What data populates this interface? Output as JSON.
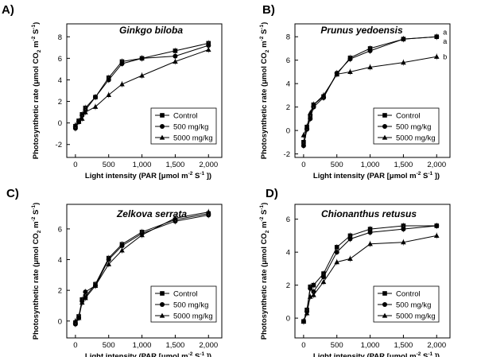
{
  "figure": {
    "legend": [
      "Control",
      "500  mg/kg",
      "5000 mg/kg"
    ],
    "x_axis_label": {
      "prefix": "Light intensity (PAR [μmol m",
      "exp1": "-2",
      "mid": " S",
      "exp2": "-1",
      "suffix": " ])"
    },
    "y_axis_label": {
      "prefix": "Photosynthetic rate (μmol CO",
      "sub": "2",
      "mid1": " m",
      "exp1": "-2",
      "mid2": " S",
      "exp2": "-1",
      "suffix": ")"
    }
  },
  "chart_data": [
    {
      "type": "line",
      "panel_label": "A)",
      "title": "Ginkgo biloba",
      "x": [
        0,
        50,
        100,
        150,
        300,
        500,
        700,
        1000,
        1500,
        2000
      ],
      "x_ticks": [
        0,
        500,
        1000,
        1500,
        2000
      ],
      "x_tick_labels": [
        "0",
        "500",
        "1,000",
        "1,500",
        "2,000"
      ],
      "xlim": [
        -130,
        2200
      ],
      "y_ticks": [
        -2,
        0,
        2,
        4,
        6,
        8
      ],
      "y_tick_labels": [
        "-2",
        "0",
        "2",
        "4",
        "6",
        "8"
      ],
      "ylim": [
        -3.2,
        9.2
      ],
      "series": [
        {
          "name": "Control",
          "marker": "square",
          "values": [
            -0.3,
            0.2,
            0.8,
            1.4,
            2.4,
            4.2,
            5.7,
            6.0,
            6.7,
            7.4
          ]
        },
        {
          "name": "500  mg/kg",
          "marker": "circle",
          "values": [
            -0.5,
            0.1,
            0.7,
            1.2,
            2.4,
            4.0,
            5.5,
            6.0,
            6.2,
            7.2
          ]
        },
        {
          "name": "5000 mg/kg",
          "marker": "triangle",
          "values": [
            -0.2,
            0.1,
            0.4,
            1.0,
            1.5,
            2.6,
            3.6,
            4.4,
            5.7,
            6.8
          ]
        }
      ],
      "significance": []
    },
    {
      "type": "line",
      "panel_label": "B)",
      "title": "Prunus yedoensis",
      "x": [
        0,
        50,
        100,
        150,
        300,
        500,
        700,
        1000,
        1500,
        2000
      ],
      "x_ticks": [
        0,
        500,
        1000,
        1500,
        2000
      ],
      "x_tick_labels": [
        "0",
        "500",
        "1,000",
        "1,500",
        "2,000"
      ],
      "xlim": [
        -130,
        2200
      ],
      "y_ticks": [
        -2,
        0,
        2,
        4,
        6,
        8
      ],
      "y_tick_labels": [
        "-2",
        "0",
        "2",
        "4",
        "6",
        "8"
      ],
      "ylim": [
        -2.3,
        9.1
      ],
      "series": [
        {
          "name": "Control",
          "marker": "square",
          "values": [
            -1.0,
            0.3,
            1.2,
            2.2,
            2.9,
            4.8,
            6.2,
            7.0,
            7.8,
            8.0
          ]
        },
        {
          "name": "500  mg/kg",
          "marker": "circle",
          "values": [
            -1.3,
            0.1,
            1.0,
            2.0,
            2.8,
            4.9,
            6.1,
            6.8,
            7.8,
            8.0
          ]
        },
        {
          "name": "5000 mg/kg",
          "marker": "triangle",
          "values": [
            -0.4,
            0.3,
            1.5,
            2.2,
            3.0,
            4.8,
            5.0,
            5.4,
            5.8,
            6.3
          ]
        }
      ],
      "significance": [
        {
          "label": "a",
          "x": 2000,
          "y": 8.4
        },
        {
          "label": "a",
          "x": 2000,
          "y": 7.6
        },
        {
          "label": "b",
          "x": 2000,
          "y": 6.3
        }
      ]
    },
    {
      "type": "line",
      "panel_label": "C)",
      "title": "Zelkova serrata",
      "x": [
        0,
        50,
        100,
        150,
        300,
        500,
        700,
        1000,
        1500,
        2000
      ],
      "x_ticks": [
        0,
        500,
        1000,
        1500,
        2000
      ],
      "x_tick_labels": [
        "0",
        "500",
        "1,000",
        "1,500",
        "2,000"
      ],
      "xlim": [
        -130,
        2200
      ],
      "y_ticks": [
        0,
        2,
        4,
        6
      ],
      "y_tick_labels": [
        "0",
        "2",
        "4",
        "6"
      ],
      "ylim": [
        -1.1,
        7.6
      ],
      "series": [
        {
          "name": "Control",
          "marker": "square",
          "values": [
            -0.1,
            0.3,
            1.4,
            1.6,
            2.4,
            4.1,
            5.0,
            5.8,
            6.6,
            7.0
          ]
        },
        {
          "name": "500  mg/kg",
          "marker": "circle",
          "values": [
            -0.2,
            0.2,
            1.3,
            1.9,
            2.3,
            4.0,
            4.9,
            5.7,
            6.5,
            6.9
          ]
        },
        {
          "name": "5000 mg/kg",
          "marker": "triangle",
          "values": [
            0.0,
            0.2,
            1.2,
            1.5,
            2.3,
            3.7,
            4.6,
            5.6,
            6.7,
            7.1
          ]
        }
      ],
      "significance": []
    },
    {
      "type": "line",
      "panel_label": "D)",
      "title": "Chionanthus retusus",
      "x": [
        0,
        50,
        100,
        150,
        300,
        500,
        700,
        1000,
        1500,
        2000
      ],
      "x_ticks": [
        0,
        500,
        1000,
        1500,
        2000
      ],
      "x_tick_labels": [
        "0",
        "500",
        "1,000",
        "1,500",
        "2,000"
      ],
      "xlim": [
        -130,
        2200
      ],
      "y_ticks": [
        0,
        2,
        4,
        6
      ],
      "y_tick_labels": [
        "0",
        "2",
        "4",
        "6"
      ],
      "ylim": [
        -1.2,
        6.9
      ],
      "series": [
        {
          "name": "Control",
          "marker": "square",
          "values": [
            -0.2,
            0.5,
            1.9,
            2.0,
            2.7,
            4.3,
            5.0,
            5.4,
            5.6,
            5.6
          ]
        },
        {
          "name": "500  mg/kg",
          "marker": "circle",
          "values": [
            -0.2,
            0.4,
            1.8,
            1.6,
            2.5,
            4.0,
            4.8,
            5.2,
            5.4,
            5.6
          ]
        },
        {
          "name": "5000 mg/kg",
          "marker": "triangle",
          "values": [
            -0.2,
            0.3,
            1.3,
            1.4,
            2.2,
            3.4,
            3.6,
            4.5,
            4.6,
            5.0
          ]
        }
      ],
      "significance": []
    }
  ]
}
